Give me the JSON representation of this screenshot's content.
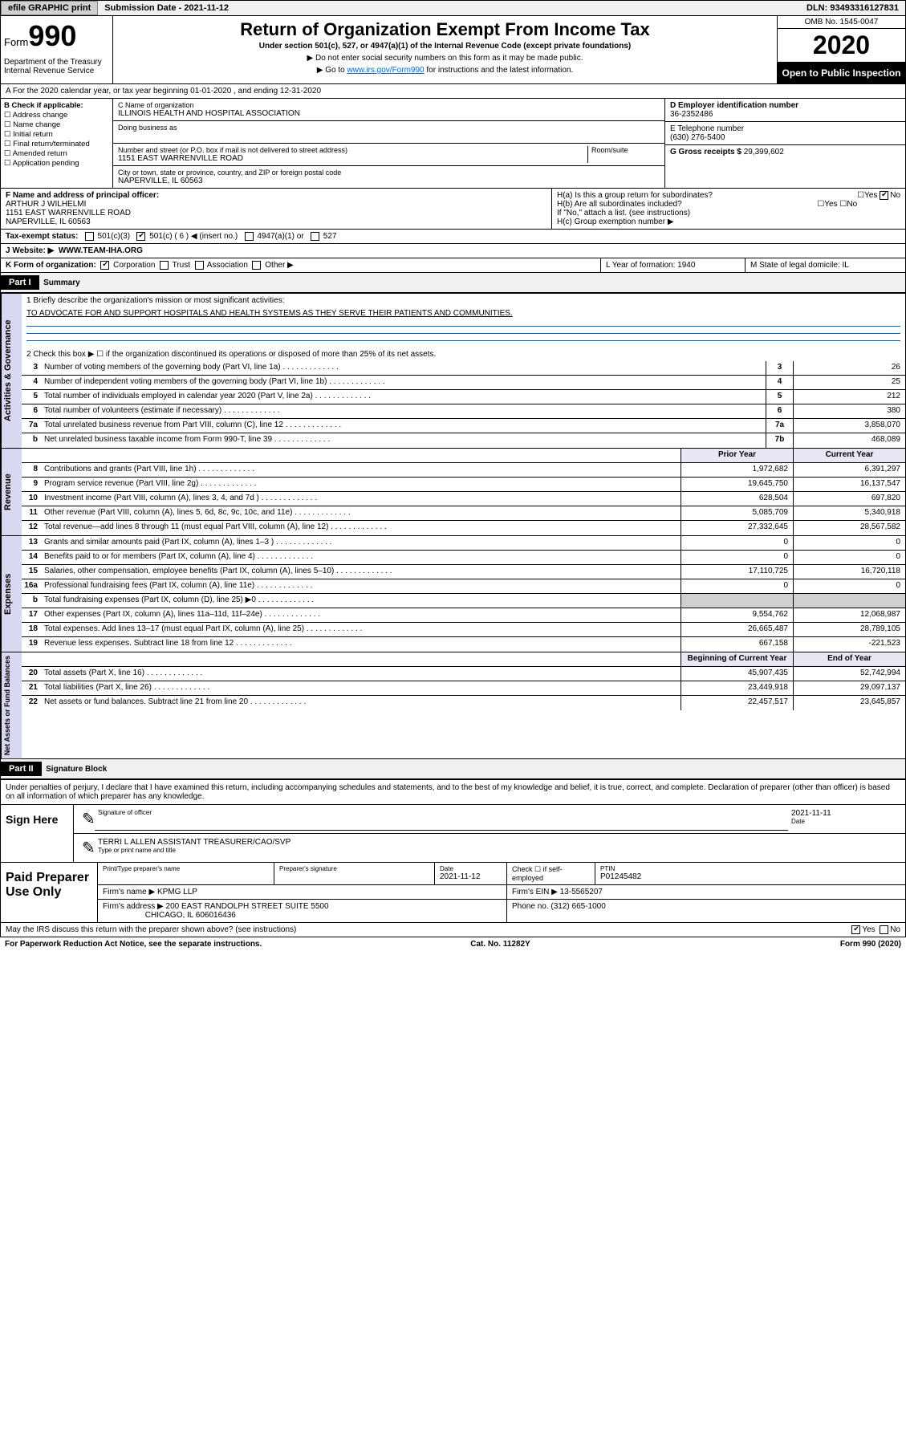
{
  "topbar": {
    "efile": "efile GRAPHIC print",
    "sub_label": "Submission Date - 2021-11-12",
    "dln": "DLN: 93493316127831"
  },
  "header": {
    "form_word": "Form",
    "form_num": "990",
    "dept": "Department of the Treasury Internal Revenue Service",
    "title": "Return of Organization Exempt From Income Tax",
    "sub1": "Under section 501(c), 527, or 4947(a)(1) of the Internal Revenue Code (except private foundations)",
    "note1": "▶ Do not enter social security numbers on this form as it may be made public.",
    "note2_pre": "▶ Go to ",
    "note2_link": "www.irs.gov/Form990",
    "note2_post": " for instructions and the latest information.",
    "omb": "OMB No. 1545-0047",
    "year": "2020",
    "open": "Open to Public Inspection"
  },
  "rowA": "A For the 2020 calendar year, or tax year beginning 01-01-2020    , and ending 12-31-2020",
  "colB": {
    "title": "B Check if applicable:",
    "items": [
      "Address change",
      "Name change",
      "Initial return",
      "Final return/terminated",
      "Amended return",
      "Application pending"
    ]
  },
  "colC": {
    "name_lbl": "C Name of organization",
    "name": "ILLINOIS HEALTH AND HOSPITAL ASSOCIATION",
    "dba_lbl": "Doing business as",
    "addr_lbl": "Number and street (or P.O. box if mail is not delivered to street address)",
    "addr": "1151 EAST WARRENVILLE ROAD",
    "room_lbl": "Room/suite",
    "city_lbl": "City or town, state or province, country, and ZIP or foreign postal code",
    "city": "NAPERVILLE, IL  60563"
  },
  "colD": {
    "ein_lbl": "D Employer identification number",
    "ein": "36-2352486",
    "tel_lbl": "E Telephone number",
    "tel": "(630) 276-5400",
    "gross_lbl": "G Gross receipts $",
    "gross": "29,399,602"
  },
  "rowF": {
    "lbl": "F  Name and address of principal officer:",
    "name": "ARTHUR J WILHELMI",
    "addr1": "1151 EAST WARRENVILLE ROAD",
    "addr2": "NAPERVILLE, IL  60563"
  },
  "rowH": {
    "ha": "H(a)  Is this a group return for subordinates?",
    "hb": "H(b)  Are all subordinates included?",
    "hb_note": "If \"No,\" attach a list. (see instructions)",
    "hc": "H(c)  Group exemption number ▶"
  },
  "rowTax": {
    "lbl": "Tax-exempt status:",
    "c1": "501(c)(3)",
    "c2": "501(c) ( 6 ) ◀ (insert no.)",
    "c3": "4947(a)(1) or",
    "c4": "527"
  },
  "rowJ": {
    "lbl": "J   Website: ▶",
    "val": "WWW.TEAM-IHA.ORG"
  },
  "rowK": {
    "k1": "K Form of organization:",
    "corp": "Corporation",
    "trust": "Trust",
    "assoc": "Association",
    "other": "Other ▶",
    "l": "L Year of formation: 1940",
    "m": "M State of legal domicile: IL"
  },
  "part1": {
    "hdr": "Part I",
    "title": "Summary",
    "q1": "1   Briefly describe the organization's mission or most significant activities:",
    "mission": "TO ADVOCATE FOR AND SUPPORT HOSPITALS AND HEALTH SYSTEMS AS THEY SERVE THEIR PATIENTS AND COMMUNITIES.",
    "q2": "2    Check this box ▶ ☐  if the organization discontinued its operations or disposed of more than 25% of its net assets.",
    "sideA": "Activities & Governance",
    "sideR": "Revenue",
    "sideE": "Expenses",
    "sideN": "Net Assets or Fund Balances",
    "lines_gov": [
      {
        "n": "3",
        "t": "Number of voting members of the governing body (Part VI, line 1a)",
        "c": "3",
        "v": "26"
      },
      {
        "n": "4",
        "t": "Number of independent voting members of the governing body (Part VI, line 1b)",
        "c": "4",
        "v": "25"
      },
      {
        "n": "5",
        "t": "Total number of individuals employed in calendar year 2020 (Part V, line 2a)",
        "c": "5",
        "v": "212"
      },
      {
        "n": "6",
        "t": "Total number of volunteers (estimate if necessary)",
        "c": "6",
        "v": "380"
      },
      {
        "n": "7a",
        "t": "Total unrelated business revenue from Part VIII, column (C), line 12",
        "c": "7a",
        "v": "3,858,070"
      },
      {
        "n": "b",
        "t": "Net unrelated business taxable income from Form 990-T, line 39",
        "c": "7b",
        "v": "468,089"
      }
    ],
    "col_py": "Prior Year",
    "col_cy": "Current Year",
    "lines_rev": [
      {
        "n": "8",
        "t": "Contributions and grants (Part VIII, line 1h)",
        "py": "1,972,682",
        "cy": "6,391,297"
      },
      {
        "n": "9",
        "t": "Program service revenue (Part VIII, line 2g)",
        "py": "19,645,750",
        "cy": "16,137,547"
      },
      {
        "n": "10",
        "t": "Investment income (Part VIII, column (A), lines 3, 4, and 7d )",
        "py": "628,504",
        "cy": "697,820"
      },
      {
        "n": "11",
        "t": "Other revenue (Part VIII, column (A), lines 5, 6d, 8c, 9c, 10c, and 11e)",
        "py": "5,085,709",
        "cy": "5,340,918"
      },
      {
        "n": "12",
        "t": "Total revenue—add lines 8 through 11 (must equal Part VIII, column (A), line 12)",
        "py": "27,332,645",
        "cy": "28,567,582"
      }
    ],
    "lines_exp": [
      {
        "n": "13",
        "t": "Grants and similar amounts paid (Part IX, column (A), lines 1–3 )",
        "py": "0",
        "cy": "0"
      },
      {
        "n": "14",
        "t": "Benefits paid to or for members (Part IX, column (A), line 4)",
        "py": "0",
        "cy": "0"
      },
      {
        "n": "15",
        "t": "Salaries, other compensation, employee benefits (Part IX, column (A), lines 5–10)",
        "py": "17,110,725",
        "cy": "16,720,118"
      },
      {
        "n": "16a",
        "t": "Professional fundraising fees (Part IX, column (A), line 11e)",
        "py": "0",
        "cy": "0"
      },
      {
        "n": "b",
        "t": "Total fundraising expenses (Part IX, column (D), line 25) ▶0",
        "py": "",
        "cy": "",
        "shade": true
      },
      {
        "n": "17",
        "t": "Other expenses (Part IX, column (A), lines 11a–11d, 11f–24e)",
        "py": "9,554,762",
        "cy": "12,068,987"
      },
      {
        "n": "18",
        "t": "Total expenses. Add lines 13–17 (must equal Part IX, column (A), line 25)",
        "py": "26,665,487",
        "cy": "28,789,105"
      },
      {
        "n": "19",
        "t": "Revenue less expenses. Subtract line 18 from line 12",
        "py": "667,158",
        "cy": "-221,523"
      }
    ],
    "col_boy": "Beginning of Current Year",
    "col_eoy": "End of Year",
    "lines_net": [
      {
        "n": "20",
        "t": "Total assets (Part X, line 16)",
        "py": "45,907,435",
        "cy": "52,742,994"
      },
      {
        "n": "21",
        "t": "Total liabilities (Part X, line 26)",
        "py": "23,449,918",
        "cy": "29,097,137"
      },
      {
        "n": "22",
        "t": "Net assets or fund balances. Subtract line 21 from line 20",
        "py": "22,457,517",
        "cy": "23,645,857"
      }
    ]
  },
  "part2": {
    "hdr": "Part II",
    "title": "Signature Block",
    "decl": "Under penalties of perjury, I declare that I have examined this return, including accompanying schedules and statements, and to the best of my knowledge and belief, it is true, correct, and complete. Declaration of preparer (other than officer) is based on all information of which preparer has any knowledge.",
    "sign_here": "Sign Here",
    "sig_officer": "Signature of officer",
    "sig_date": "2021-11-11",
    "sig_date_lbl": "Date",
    "sig_name": "TERRI L ALLEN  ASSISTANT TREASURER/CAO/SVP",
    "sig_name_lbl": "Type or print name and title",
    "paid": "Paid Preparer Use Only",
    "pp_name_lbl": "Print/Type preparer's name",
    "pp_sig_lbl": "Preparer's signature",
    "pp_date_lbl": "Date",
    "pp_date": "2021-11-12",
    "pp_check_lbl": "Check ☐ if self-employed",
    "pp_ptin_lbl": "PTIN",
    "pp_ptin": "P01245482",
    "firm_name_lbl": "Firm's name    ▶",
    "firm_name": "KPMG LLP",
    "firm_ein_lbl": "Firm's EIN ▶",
    "firm_ein": "13-5565207",
    "firm_addr_lbl": "Firm's address ▶",
    "firm_addr": "200 EAST RANDOLPH STREET SUITE 5500",
    "firm_addr2": "CHICAGO, IL  606016436",
    "firm_phone_lbl": "Phone no.",
    "firm_phone": "(312) 665-1000",
    "discuss": "May the IRS discuss this return with the preparer shown above? (see instructions)",
    "yes": "Yes",
    "no": "No"
  },
  "footer": {
    "pra": "For Paperwork Reduction Act Notice, see the separate instructions.",
    "cat": "Cat. No. 11282Y",
    "form": "Form 990 (2020)"
  }
}
